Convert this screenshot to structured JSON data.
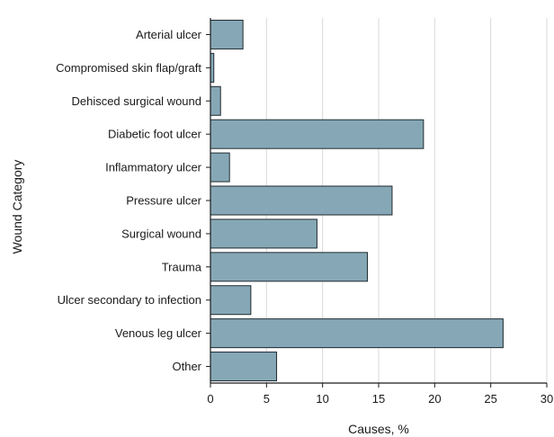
{
  "chart_data": {
    "type": "bar",
    "orientation": "horizontal",
    "categories": [
      "Arterial ulcer",
      "Compromised skin flap/graft",
      "Dehisced surgical wound",
      "Diabetic foot ulcer",
      "Inflammatory ulcer",
      "Pressure ulcer",
      "Surgical wound",
      "Trauma",
      "Ulcer secondary to infection",
      "Venous leg ulcer",
      "Other"
    ],
    "values": [
      2.9,
      0.3,
      0.9,
      19.0,
      1.7,
      16.2,
      9.5,
      14.0,
      3.6,
      26.1,
      5.9
    ],
    "xlabel": "Causes, %",
    "ylabel": "Wound Category",
    "xlim": [
      0,
      30
    ],
    "xticks": [
      "0",
      "5",
      "10",
      "15",
      "20",
      "25",
      "30"
    ],
    "grid": "vertical",
    "legend": "none",
    "colors": {
      "bar_fill": "#86a8b6",
      "bar_stroke": "#1f2a30",
      "grid": "#d9d9d9",
      "axis": "#1a1a1a"
    }
  }
}
